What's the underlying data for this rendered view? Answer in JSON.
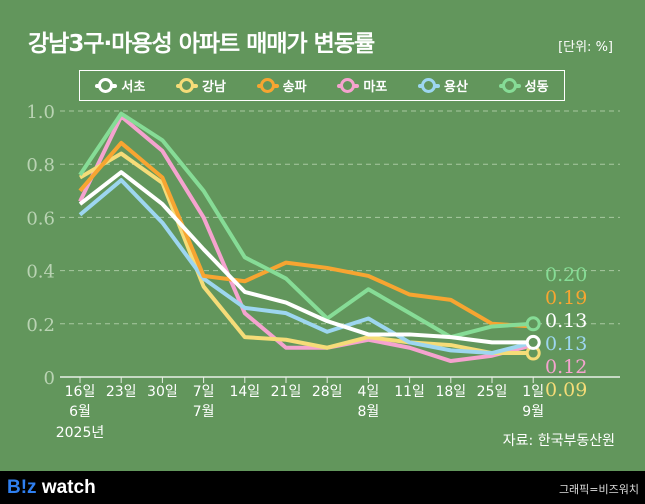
{
  "header": {
    "title": "강남3구·마용성 아파트 매매가 변동률",
    "unit": "[단위: %]"
  },
  "chart_data": {
    "type": "line",
    "title": "강남3구·마용성 아파트 매매가 변동률",
    "ylabel": "%",
    "ylim": [
      0,
      1.0
    ],
    "yticks": [
      "0",
      "0.2",
      "0.4",
      "0.6",
      "0.8",
      "1.0"
    ],
    "grid": true,
    "legend_position": "top",
    "categories": [
      "16일",
      "23일",
      "30일",
      "7일",
      "14일",
      "21일",
      "28일",
      "4일",
      "11일",
      "18일",
      "25일",
      "1일"
    ],
    "month_labels": {
      "0": "6월",
      "3": "7월",
      "7": "8월",
      "11": "9월"
    },
    "year_label": "2025년",
    "series": [
      {
        "name": "서초",
        "color": "#ffffff",
        "values": [
          0.65,
          0.77,
          0.65,
          0.48,
          0.32,
          0.28,
          0.21,
          0.16,
          0.16,
          0.15,
          0.13,
          0.13
        ],
        "end_label": "0.13"
      },
      {
        "name": "강남",
        "color": "#f5dc78",
        "values": [
          0.75,
          0.84,
          0.73,
          0.34,
          0.15,
          0.14,
          0.11,
          0.15,
          0.13,
          0.12,
          0.09,
          0.09
        ],
        "end_label": "0.09"
      },
      {
        "name": "송파",
        "color": "#f7a531",
        "values": [
          0.7,
          0.88,
          0.75,
          0.38,
          0.36,
          0.43,
          0.41,
          0.38,
          0.31,
          0.29,
          0.2,
          0.19
        ],
        "end_label": "0.19"
      },
      {
        "name": "마포",
        "color": "#f5a3cf",
        "values": [
          0.66,
          0.98,
          0.85,
          0.6,
          0.24,
          0.11,
          0.11,
          0.14,
          0.11,
          0.06,
          0.08,
          0.12
        ],
        "end_label": "0.12"
      },
      {
        "name": "용산",
        "color": "#9dd6f0",
        "values": [
          0.61,
          0.74,
          0.58,
          0.37,
          0.26,
          0.24,
          0.17,
          0.22,
          0.13,
          0.1,
          0.09,
          0.13
        ],
        "end_label": "0.13"
      },
      {
        "name": "성동",
        "color": "#86dc96",
        "values": [
          0.76,
          0.99,
          0.89,
          0.7,
          0.45,
          0.37,
          0.22,
          0.33,
          0.24,
          0.15,
          0.19,
          0.2
        ],
        "end_label": "0.20"
      }
    ],
    "end_label_order": [
      5,
      2,
      0,
      4,
      3,
      1
    ]
  },
  "source": "자료: 한국부동산원",
  "footer": {
    "logo_b": "B!z",
    "logo_rest": " watch",
    "credit": "그래픽=비즈워치"
  }
}
